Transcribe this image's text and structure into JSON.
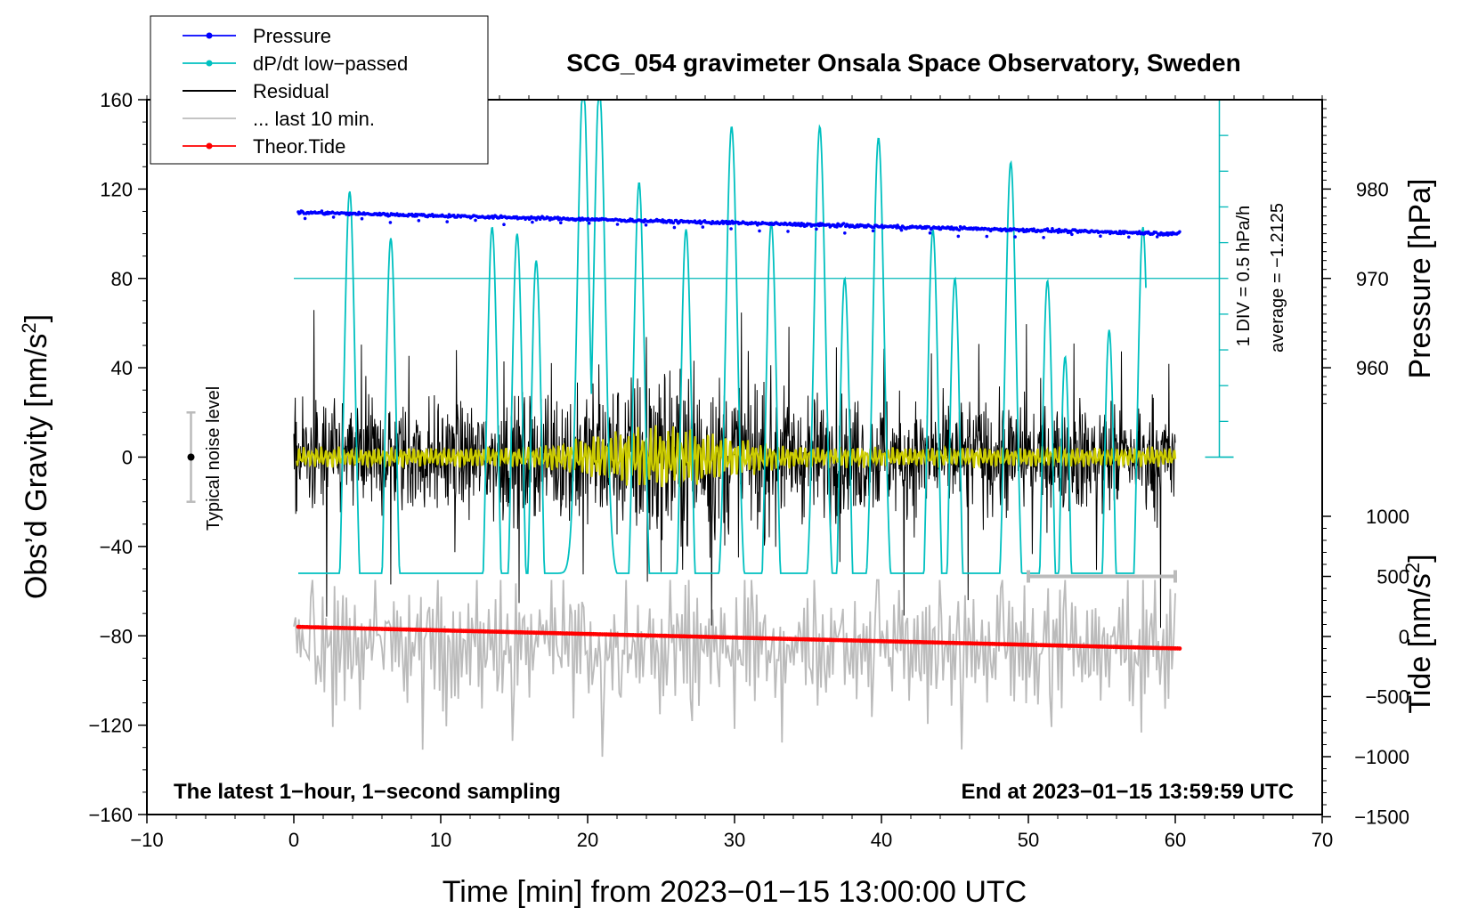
{
  "chart_data": {
    "type": "line",
    "title": "SCG_054 gravimeter Onsala Space Observatory, Sweden",
    "xlabel": "Time [min] from 2023−01−15 13:00:00 UTC",
    "ylabel_main": "Obs’d Gravity [nm/s",
    "ylabel_main_sup": "2",
    "ylabel_main_close": "]",
    "ylabel_pressure": "Pressure [hPa]",
    "ylabel_tide": "Tide [nm/s",
    "ylabel_tide_sup": "2",
    "ylabel_tide_close": "]",
    "xlim": [
      -10,
      70
    ],
    "ylim": [
      -160,
      160
    ],
    "pressure_lim": [
      940,
      990
    ],
    "tide_lim": [
      -1500,
      1000
    ],
    "x_ticks": [
      "−10",
      "0",
      "10",
      "20",
      "30",
      "40",
      "50",
      "60",
      "70"
    ],
    "y_ticks": [
      "160",
      "120",
      "80",
      "40",
      "0",
      "−40",
      "−80",
      "−120",
      "−160"
    ],
    "pressure_ticks": [
      "980",
      "970",
      "960"
    ],
    "tide_ticks": [
      "1000",
      "500",
      "0",
      "−500",
      "−1000",
      "−1500"
    ],
    "legend": [
      {
        "label": "Pressure",
        "color": "#0000ff",
        "marker": true
      },
      {
        "label": "dP/dt low−passed",
        "color": "#00c0c0",
        "marker": true
      },
      {
        "label": "Residual",
        "color": "#000000",
        "marker": false
      },
      {
        "label": "... last 10 min.",
        "color": "#bbbbbb",
        "marker": false
      },
      {
        "label": "Theor.Tide",
        "color": "#ff0000",
        "marker": true
      }
    ],
    "annotations": {
      "bottom_left": "The latest 1−hour, 1−second sampling",
      "bottom_right": "End at 2023−01−15 13:59:59 UTC",
      "noise_label": "Typical noise level",
      "div_label": "1 DIV = 0.5 hPa/h",
      "average_label": "average = −1.2125"
    },
    "noise_bar": {
      "x": -7,
      "center": 0,
      "half_range": 20
    },
    "last10_bar": {
      "x_start": 50,
      "x_end": 60,
      "tide": 500
    },
    "dpdt_zero_level": 80,
    "dpdt_axis": {
      "x": 63,
      "y_top": 160,
      "y_bottom": 0,
      "divisions": 10
    },
    "pressure_series": {
      "x_start": 0.3,
      "x_end": 60.3,
      "p_start": 977.4,
      "p_end": 975.0
    },
    "tide_series": {
      "x_start": 0.3,
      "x_end": 60.3,
      "t_start": 80,
      "t_end": -100
    },
    "residual_series": {
      "x_start": 0.0,
      "x_end": 60.0,
      "amplitude": 20,
      "peak_max": 67,
      "peak_min": -77
    },
    "filtered_series": {
      "color": "#cccc00",
      "amplitude": 5,
      "burst_center_min": 25,
      "burst_amplitude": 12
    },
    "last10_series": {
      "x_start": 0.0,
      "x_end": 60.0,
      "center": -85,
      "range_max": -55,
      "range_min": -135
    },
    "dpdt_peaks": [
      {
        "x": 3.8,
        "y": 119
      },
      {
        "x": 6.6,
        "y": 98
      },
      {
        "x": 13.5,
        "y": 103
      },
      {
        "x": 15.2,
        "y": 100
      },
      {
        "x": 16.5,
        "y": 88
      },
      {
        "x": 19.7,
        "y": 168
      },
      {
        "x": 20.8,
        "y": 166
      },
      {
        "x": 23.5,
        "y": 123
      },
      {
        "x": 26.7,
        "y": 102
      },
      {
        "x": 29.8,
        "y": 148
      },
      {
        "x": 32.5,
        "y": 105
      },
      {
        "x": 35.8,
        "y": 148
      },
      {
        "x": 37.5,
        "y": 80
      },
      {
        "x": 39.8,
        "y": 143
      },
      {
        "x": 43.5,
        "y": 102
      },
      {
        "x": 45.0,
        "y": 80
      },
      {
        "x": 48.8,
        "y": 132
      },
      {
        "x": 51.3,
        "y": 79
      },
      {
        "x": 52.5,
        "y": 45
      },
      {
        "x": 55.5,
        "y": 57
      },
      {
        "x": 57.8,
        "y": 103
      }
    ]
  }
}
